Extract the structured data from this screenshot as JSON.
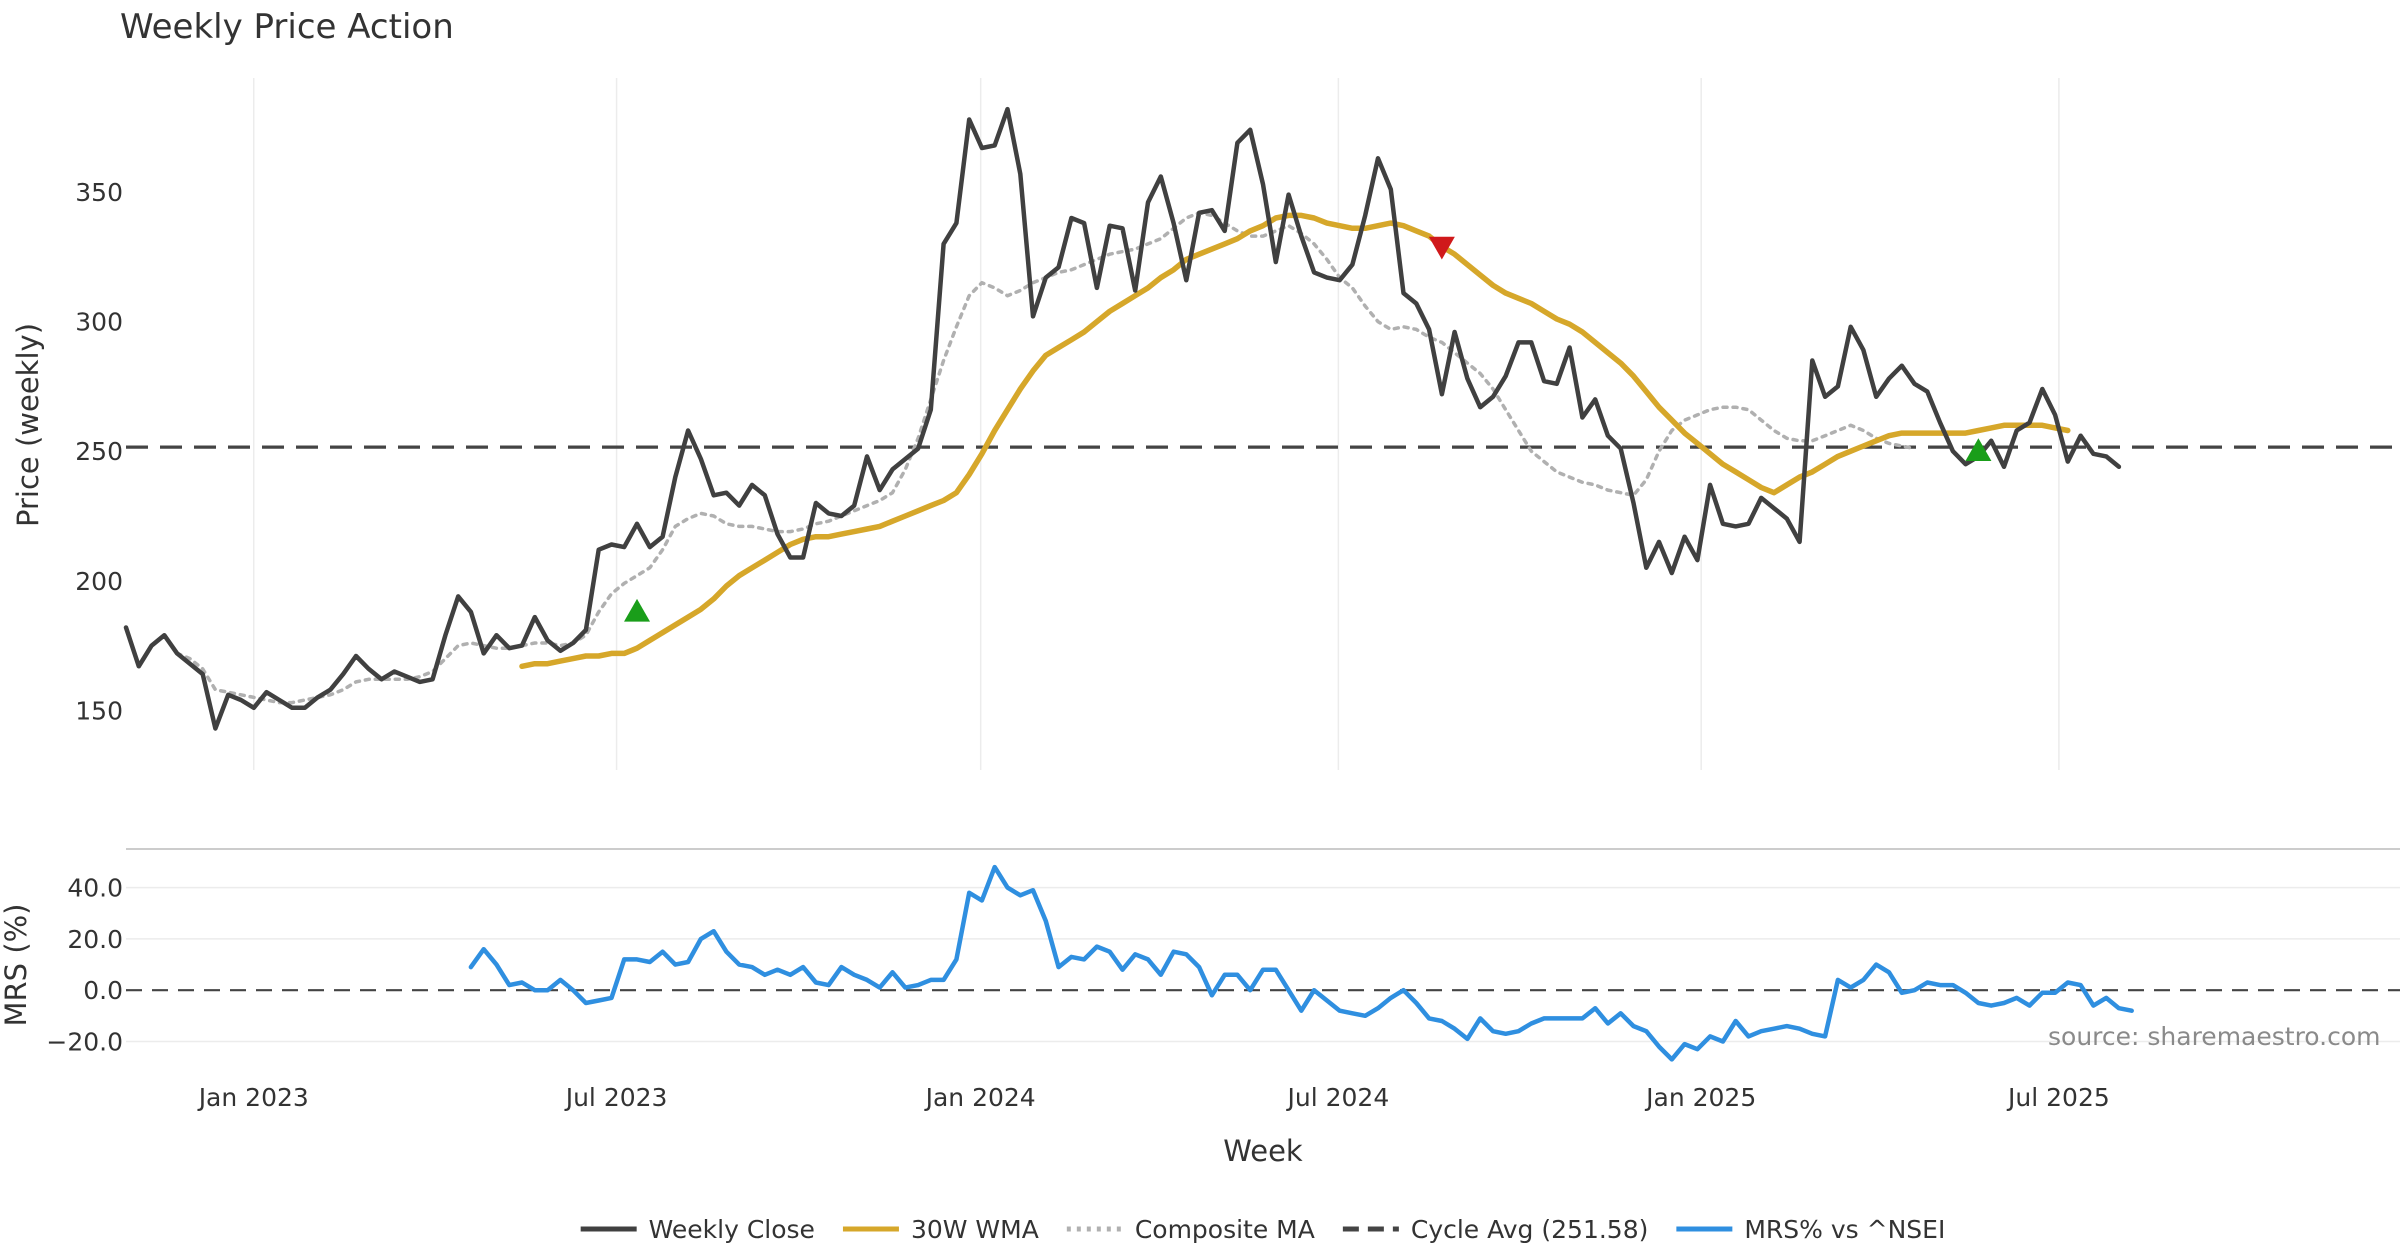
{
  "chart_data": {
    "type": "line",
    "title": "Weekly Price Action",
    "xlabel": "Week",
    "x_ticks": [
      "Jan 2023",
      "Jul 2023",
      "Jan 2024",
      "Jul 2024",
      "Jan 2025",
      "Jul 2025"
    ],
    "x_range_weeks": [
      0,
      178
    ],
    "x_tick_weeks": [
      10,
      38.4,
      66.9,
      94.9,
      123.3,
      151.3
    ],
    "price_panel": {
      "ylabel": "Price (weekly)",
      "ylim": [
        127,
        394
      ],
      "y_ticks": [
        150,
        200,
        250,
        300,
        350
      ],
      "series": [
        {
          "name": "Weekly Close",
          "color": "#404040",
          "style": "solid",
          "values": [
            182,
            167,
            175,
            179,
            172,
            168,
            164,
            143,
            156,
            154,
            151,
            157,
            154,
            151,
            151,
            155,
            158,
            164,
            171,
            166,
            162,
            165,
            163,
            161,
            162,
            179,
            194,
            188,
            172,
            179,
            174,
            175,
            186,
            177,
            173,
            176,
            181,
            212,
            214,
            213,
            222,
            213,
            217,
            240,
            258,
            247,
            233,
            234,
            229,
            237,
            233,
            218,
            209,
            209,
            230,
            226,
            225,
            229,
            248,
            235,
            243,
            247,
            251,
            266,
            330,
            338,
            378,
            367,
            368,
            382,
            357,
            302,
            317,
            321,
            340,
            338,
            313,
            337,
            336,
            312,
            346,
            356,
            338,
            316,
            342,
            343,
            335,
            369,
            374,
            353,
            323,
            349,
            333,
            319,
            317,
            316,
            322,
            341,
            363,
            351,
            311,
            307,
            297,
            272,
            296,
            278,
            267,
            271,
            279,
            292,
            292,
            277,
            276,
            290,
            263,
            270,
            256,
            251,
            230,
            205,
            215,
            203,
            217,
            208,
            237,
            222,
            221,
            222,
            232,
            228,
            224,
            215,
            285,
            271,
            275,
            298,
            289,
            271,
            278,
            283,
            276,
            273,
            261,
            250,
            245,
            248,
            254,
            244,
            258,
            261,
            274,
            264,
            246,
            256,
            249,
            248,
            244
          ]
        },
        {
          "name": "30W WMA",
          "color": "#d6a72a",
          "style": "solid",
          "start_week": 31,
          "values": [
            167,
            168,
            168,
            169,
            170,
            171,
            171,
            172,
            172,
            174,
            177,
            180,
            183,
            186,
            189,
            193,
            198,
            202,
            205,
            208,
            211,
            214,
            216,
            217,
            217,
            218,
            219,
            220,
            221,
            223,
            225,
            227,
            229,
            231,
            234,
            241,
            249,
            258,
            266,
            274,
            281,
            287,
            290,
            293,
            296,
            300,
            304,
            307,
            310,
            313,
            317,
            320,
            324,
            326,
            328,
            330,
            332,
            335,
            337,
            340,
            341,
            341,
            340,
            338,
            337,
            336,
            336,
            337,
            338,
            337,
            335,
            333,
            329,
            326,
            322,
            318,
            314,
            311,
            309,
            307,
            304,
            301,
            299,
            296,
            292,
            288,
            284,
            279,
            273,
            267,
            262,
            257,
            253,
            249,
            245,
            242,
            239,
            236,
            234,
            237,
            240,
            242,
            245,
            248,
            250,
            252,
            254,
            256,
            257,
            257,
            257,
            257,
            257,
            257,
            258,
            259,
            260,
            260,
            260,
            260,
            259,
            258
          ]
        },
        {
          "name": "Composite MA",
          "color": "#b0b0b0",
          "style": "dotted",
          "start_week": 4,
          "values": [
            172,
            170,
            166,
            158,
            157,
            156,
            155,
            154,
            153,
            153,
            154,
            155,
            156,
            158,
            161,
            162,
            162,
            162,
            162,
            163,
            165,
            170,
            175,
            176,
            175,
            174,
            174,
            175,
            176,
            176,
            175,
            176,
            179,
            188,
            195,
            199,
            202,
            205,
            212,
            221,
            224,
            226,
            225,
            222,
            221,
            221,
            220,
            219,
            219,
            220,
            222,
            223,
            225,
            227,
            229,
            231,
            234,
            243,
            255,
            270,
            285,
            298,
            310,
            315,
            313,
            310,
            312,
            315,
            317,
            319,
            320,
            322,
            324,
            326,
            327,
            328,
            330,
            332,
            336,
            340,
            342,
            341,
            338,
            335,
            333,
            333,
            335,
            337,
            334,
            330,
            324,
            317,
            313,
            306,
            300,
            297,
            298,
            297,
            294,
            292,
            288,
            284,
            280,
            274,
            266,
            258,
            250,
            246,
            242,
            240,
            238,
            237,
            235,
            234,
            233,
            239,
            250,
            258,
            262,
            264,
            266,
            267,
            267,
            266,
            262,
            258,
            255,
            254,
            254,
            256,
            258,
            260,
            258,
            255,
            253,
            252,
            251
          ]
        },
        {
          "name": "Cycle Avg (251.58)",
          "color": "#444444",
          "style": "dashed",
          "value": 251.58
        }
      ],
      "signals": [
        {
          "type": "buy",
          "week": 40,
          "price": 188,
          "color": "#1a9e1a"
        },
        {
          "type": "sell",
          "week": 103,
          "price": 329,
          "color": "#d0191b"
        },
        {
          "type": "buy",
          "week": 145,
          "price": 250,
          "color": "#1a9e1a"
        }
      ]
    },
    "mrs_panel": {
      "ylabel": "MRS (%)",
      "ylim": [
        -28,
        50
      ],
      "y_ticks": [
        40,
        20,
        0,
        -20
      ],
      "y_tick_labels": [
        "40.0",
        "20.0",
        "0.0",
        "−20.0"
      ],
      "zero_line": 0,
      "series": [
        {
          "name": "MRS% vs ^NSEI",
          "color": "#2f8fe0",
          "style": "solid",
          "start_week": 27,
          "values": [
            9,
            16,
            10,
            2,
            3,
            0,
            0,
            4,
            0,
            -5,
            -4,
            -3,
            12,
            12,
            11,
            15,
            10,
            11,
            20,
            23,
            15,
            10,
            9,
            6,
            8,
            6,
            9,
            3,
            2,
            9,
            6,
            4,
            1,
            7,
            1,
            2,
            4,
            4,
            12,
            38,
            35,
            48,
            40,
            37,
            39,
            27,
            9,
            13,
            12,
            17,
            15,
            8,
            14,
            12,
            6,
            15,
            14,
            9,
            -2,
            6,
            6,
            0,
            8,
            8,
            0,
            -8,
            0,
            -4,
            -8,
            -9,
            -10,
            -7,
            -3,
            0,
            -5,
            -11,
            -12,
            -15,
            -19,
            -11,
            -16,
            -17,
            -16,
            -13,
            -11,
            -11,
            -11,
            -11,
            -7,
            -13,
            -9,
            -14,
            -16,
            -22,
            -27,
            -21,
            -23,
            -18,
            -20,
            -12,
            -18,
            -16,
            -15,
            -14,
            -15,
            -17,
            -18,
            4,
            1,
            4,
            10,
            7,
            -1,
            0,
            3,
            2,
            2,
            -1,
            -5,
            -6,
            -5,
            -3,
            -6,
            -1,
            -1,
            3,
            2,
            -6,
            -3,
            -7,
            -8
          ]
        }
      ]
    },
    "legend": [
      {
        "label": "Weekly Close",
        "color": "#404040",
        "style": "solid"
      },
      {
        "label": "30W WMA",
        "color": "#d6a72a",
        "style": "solid"
      },
      {
        "label": "Composite MA",
        "color": "#b0b0b0",
        "style": "dotted"
      },
      {
        "label": "Cycle Avg (251.58)",
        "color": "#444444",
        "style": "dashed"
      },
      {
        "label": "MRS% vs ^NSEI",
        "color": "#2f8fe0",
        "style": "solid"
      }
    ],
    "legend_position": "bottom-center",
    "annotation": "source: sharemaestro.com"
  }
}
